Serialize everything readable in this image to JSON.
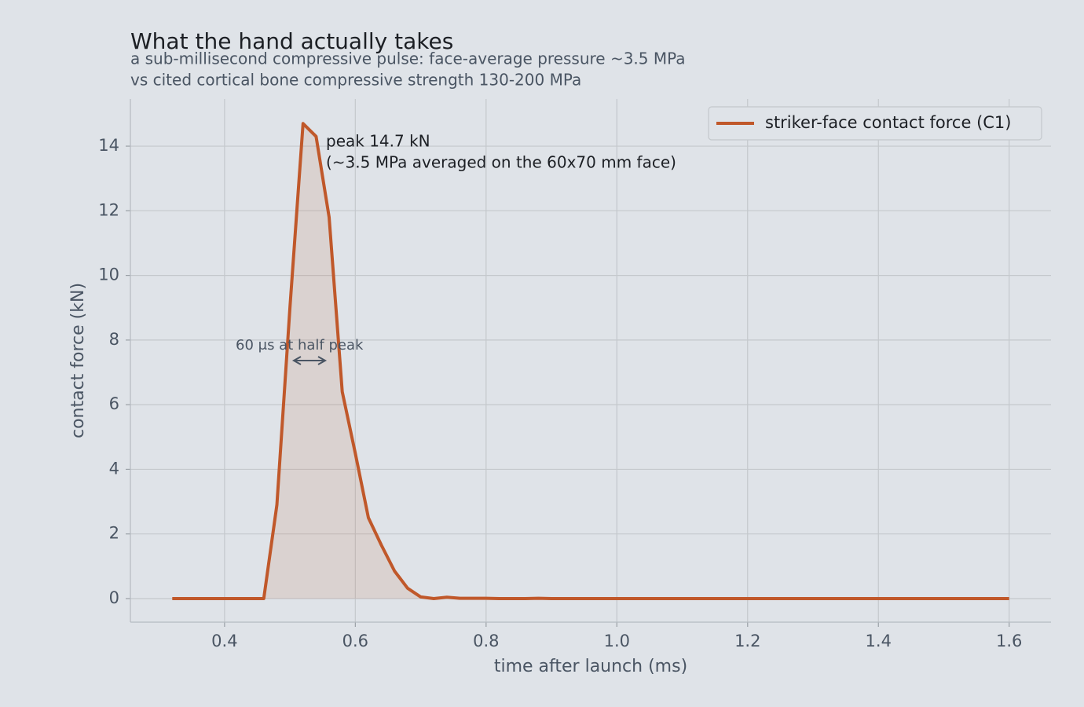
{
  "chart_data": {
    "type": "line",
    "title": "What the hand actually takes",
    "subtitle": [
      "a sub-millisecond compressive pulse: face-average pressure ~3.5 MPa",
      "vs cited cortical bone compressive strength 130-200 MPa"
    ],
    "xlabel": "time after launch (ms)",
    "ylabel": "contact force (kN)",
    "x": [
      0.32,
      0.46,
      0.48,
      0.5,
      0.52,
      0.54,
      0.56,
      0.58,
      0.6,
      0.62,
      0.64,
      0.66,
      0.68,
      0.7,
      0.72,
      0.74,
      0.76,
      0.78,
      0.8,
      0.82,
      0.84,
      0.86,
      0.88,
      0.9,
      1.6
    ],
    "series": [
      {
        "name": "striker-face contact force (C1)",
        "color": "#c0582a",
        "values": [
          0,
          0,
          2.9,
          9.0,
          14.7,
          14.3,
          11.8,
          6.4,
          4.5,
          2.5,
          1.65,
          0.85,
          0.32,
          0.05,
          0,
          0.04,
          0.01,
          0.01,
          0.01,
          0,
          0,
          0,
          0.01,
          0,
          0
        ]
      }
    ],
    "xlim": [
      0.256,
      1.664
    ],
    "ylim": [
      -0.73,
      15.46
    ],
    "xticks": [
      0.4,
      0.6,
      0.8,
      {
        "value": 1,
        "label": "1.0"
      },
      1.2,
      1.4,
      1.6
    ],
    "yticks": [
      0,
      2,
      4,
      6,
      8,
      10,
      12,
      14
    ],
    "grid": true,
    "legend": "upper right",
    "annotations": [
      {
        "text": [
          "peak 14.7 kN",
          "(~3.5 MPa averaged on the 60x70 mm face)"
        ]
      },
      {
        "text": "60 μs at half peak"
      }
    ]
  }
}
